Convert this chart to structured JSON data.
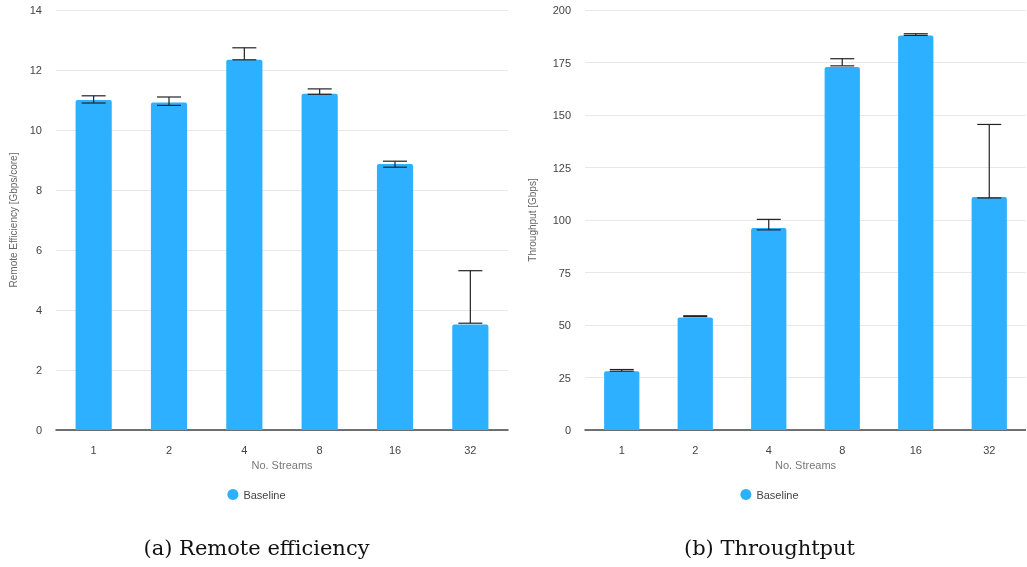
{
  "chart_data": [
    {
      "type": "bar",
      "title": "(a) Remote efficiency",
      "xlabel": "No. Streams",
      "ylabel": "Remote Efficiency [Gbps/core]",
      "categories": [
        "1",
        "2",
        "4",
        "8",
        "16",
        "32"
      ],
      "series": [
        {
          "name": "Baseline",
          "color": "#2db0ff",
          "values": [
            11.0,
            10.92,
            12.34,
            11.21,
            8.87,
            3.52
          ],
          "errors": [
            [
              10.9,
              11.14
            ],
            [
              10.82,
              11.1
            ],
            [
              12.34,
              12.74
            ],
            [
              11.19,
              11.37
            ],
            [
              8.76,
              8.96
            ],
            [
              3.56,
              5.31
            ]
          ]
        }
      ],
      "ylim": [
        0,
        14
      ],
      "yticks": [
        0,
        2,
        4,
        6,
        8,
        10,
        12,
        14
      ],
      "grid": "y",
      "legend": "bottom"
    },
    {
      "type": "bar",
      "title": "(b) Throughtput",
      "xlabel": "No. Streams",
      "ylabel": "Throughput [Gbps]",
      "categories": [
        "1",
        "2",
        "4",
        "8",
        "16",
        "32"
      ],
      "series": [
        {
          "name": "Baseline",
          "color": "#2db0ff",
          "values": [
            28.0,
            53.6,
            96.2,
            172.9,
            187.9,
            111
          ],
          "errors": [
            [
              28.0,
              28.8
            ],
            [
              54.0,
              54.4
            ],
            [
              95.3,
              100.3
            ],
            [
              173.4,
              176.8
            ],
            [
              187.9,
              188.7
            ],
            [
              110.5,
              145.5
            ]
          ]
        }
      ],
      "ylim": [
        0,
        200
      ],
      "yticks": [
        0,
        25,
        50,
        75,
        100,
        125,
        150,
        175,
        200
      ],
      "grid": "y",
      "legend": "bottom"
    }
  ]
}
